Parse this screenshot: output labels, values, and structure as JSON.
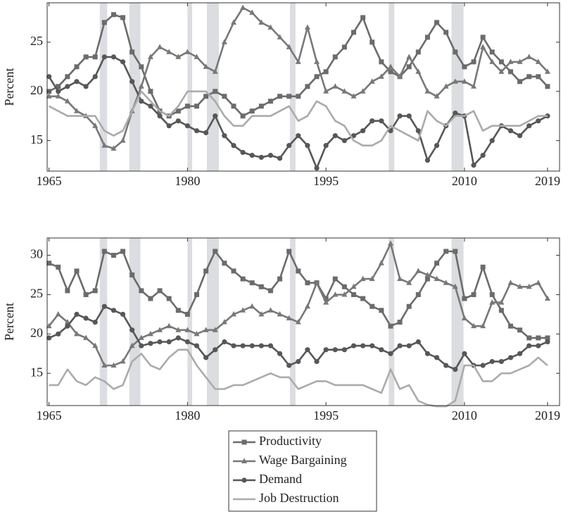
{
  "chart_data": [
    {
      "type": "line",
      "ylabel": "Percent",
      "x": [
        1965,
        1966,
        1967,
        1968,
        1969,
        1970,
        1971,
        1972,
        1973,
        1974,
        1975,
        1976,
        1977,
        1978,
        1979,
        1980,
        1981,
        1982,
        1983,
        1984,
        1985,
        1986,
        1987,
        1988,
        1989,
        1990,
        1991,
        1992,
        1993,
        1994,
        1995,
        1996,
        1997,
        1998,
        1999,
        2000,
        2001,
        2002,
        2003,
        2004,
        2005,
        2006,
        2007,
        2008,
        2009,
        2010,
        2011,
        2012,
        2013,
        2014,
        2015,
        2016,
        2017,
        2018,
        2019
      ],
      "xlim": [
        1964.8,
        2020.3
      ],
      "xticks": [
        1965,
        1980,
        1995,
        2010,
        2019
      ],
      "ylim": [
        11.9,
        29
      ],
      "yticks": [
        15,
        20,
        25
      ],
      "shaded_x": [
        [
          1970.5,
          1971.3
        ],
        [
          1973.7,
          1974.9
        ],
        [
          1980.0,
          1980.5
        ],
        [
          1982.1,
          1983.4
        ],
        [
          1991.1,
          1991.7
        ],
        [
          2001.8,
          2002.4
        ],
        [
          2008.6,
          2009.9
        ]
      ],
      "shade_color": "#dcdde0",
      "series": [
        {
          "name": "Productivity",
          "color": "#6b6b6b",
          "marker": "square",
          "values": [
            20,
            20.5,
            21.5,
            22.5,
            23.5,
            23.5,
            27,
            27.8,
            27.5,
            24,
            22.5,
            20,
            18,
            17.5,
            18,
            18.5,
            18.5,
            19.5,
            20,
            19.5,
            18.5,
            17.5,
            18,
            18.5,
            19,
            19.5,
            19.5,
            19.5,
            20.5,
            21.5,
            22,
            23.5,
            24.5,
            26,
            27.5,
            25,
            23,
            22,
            21.5,
            22.5,
            24,
            25.5,
            27,
            26,
            24,
            22.5,
            23,
            25.5,
            24,
            23,
            22,
            21,
            21.5,
            21.5,
            20.5
          ]
        },
        {
          "name": "Wage Bargaining",
          "color": "#787878",
          "marker": "triangle",
          "values": [
            19.5,
            19.5,
            19,
            18,
            17.5,
            16.5,
            14.5,
            14.2,
            15,
            18,
            20.5,
            23.5,
            24.5,
            24,
            23.5,
            24,
            23.5,
            22.5,
            22,
            25,
            27,
            28.5,
            28,
            27,
            26.5,
            25.5,
            24.5,
            23,
            26.5,
            23,
            20,
            20.5,
            20,
            19.5,
            20,
            21,
            21.5,
            22.5,
            21.5,
            23.5,
            22,
            20,
            19.5,
            20.5,
            21,
            21,
            20.5,
            24.5,
            23,
            22,
            23,
            23,
            23.5,
            23,
            22
          ]
        },
        {
          "name": "Demand",
          "color": "#575757",
          "marker": "circle",
          "values": [
            21.5,
            20,
            20.5,
            21,
            20.5,
            21.5,
            23.5,
            23.5,
            23,
            21,
            19,
            18.5,
            17.5,
            16.5,
            17,
            16.5,
            16,
            15.8,
            17.5,
            15.5,
            14.5,
            13.8,
            13.5,
            13.3,
            13.5,
            13.2,
            14.5,
            15.5,
            14.5,
            12.2,
            14.5,
            15.5,
            15,
            15.5,
            16,
            17,
            17,
            16,
            17.5,
            17.5,
            16,
            13,
            14.5,
            16.5,
            17.8,
            17.5,
            12.5,
            13.5,
            15,
            16.5,
            16,
            15.5,
            16.5,
            17,
            17.5
          ]
        },
        {
          "name": "Job Destruction",
          "color": "#ababab",
          "marker": "none",
          "values": [
            18.5,
            18,
            17.5,
            17.5,
            17.5,
            17.5,
            16,
            15.5,
            16,
            18,
            20,
            19,
            18,
            17.5,
            18.5,
            20,
            20,
            20,
            19,
            17.5,
            16.5,
            16.5,
            17.5,
            17.5,
            17.5,
            18,
            18.5,
            17,
            17.5,
            19,
            18.5,
            17,
            16.5,
            15,
            14.5,
            14.5,
            15,
            16.5,
            16,
            15.5,
            15,
            18,
            17,
            16.5,
            17.5,
            17.5,
            18,
            16,
            16.5,
            16.5,
            16.5,
            16.5,
            17,
            17.5,
            17.5
          ]
        }
      ]
    },
    {
      "type": "line",
      "ylabel": "Percent",
      "x": [
        1965,
        1966,
        1967,
        1968,
        1969,
        1970,
        1971,
        1972,
        1973,
        1974,
        1975,
        1976,
        1977,
        1978,
        1979,
        1980,
        1981,
        1982,
        1983,
        1984,
        1985,
        1986,
        1987,
        1988,
        1989,
        1990,
        1991,
        1992,
        1993,
        1994,
        1995,
        1996,
        1997,
        1998,
        1999,
        2000,
        2001,
        2002,
        2003,
        2004,
        2005,
        2006,
        2007,
        2008,
        2009,
        2010,
        2011,
        2012,
        2013,
        2014,
        2015,
        2016,
        2017,
        2018,
        2019
      ],
      "xlim": [
        1964.8,
        2020.3
      ],
      "xticks": [
        1965,
        1980,
        1995,
        2010,
        2019
      ],
      "ylim": [
        10.9,
        32.2
      ],
      "yticks": [
        15,
        20,
        25,
        30
      ],
      "shaded_x": [
        [
          1970.5,
          1971.3
        ],
        [
          1973.7,
          1974.9
        ],
        [
          1980.0,
          1980.5
        ],
        [
          1982.1,
          1983.4
        ],
        [
          1991.1,
          1991.7
        ],
        [
          2001.8,
          2002.4
        ],
        [
          2008.6,
          2009.9
        ]
      ],
      "shade_color": "#dcdde0",
      "series": [
        {
          "name": "Productivity",
          "color": "#6b6b6b",
          "marker": "square",
          "values": [
            29,
            28.5,
            25.5,
            28,
            25,
            25.5,
            30.5,
            30,
            30.5,
            27.5,
            25.5,
            24.5,
            25.5,
            24.5,
            23,
            22.5,
            25,
            28,
            30.5,
            29,
            28,
            27,
            26.5,
            26,
            25.5,
            27,
            30.5,
            28,
            26.5,
            26.5,
            24.5,
            27,
            26,
            25,
            24.5,
            23.5,
            23,
            21,
            21.5,
            23.5,
            25,
            27,
            29,
            30.5,
            30.5,
            24.5,
            25,
            28.5,
            25,
            23,
            21,
            20.5,
            19.5,
            19.5,
            19.5
          ]
        },
        {
          "name": "Wage Bargaining",
          "color": "#787878",
          "marker": "triangle",
          "values": [
            21,
            22.5,
            21.5,
            20,
            19.5,
            18.5,
            16,
            16,
            16.5,
            18.5,
            19.5,
            20,
            20.5,
            21,
            20.5,
            20.5,
            20,
            20.5,
            20.5,
            21.5,
            22.5,
            23,
            23.5,
            22.5,
            23,
            22.5,
            22,
            21.5,
            23.5,
            26.5,
            24,
            25,
            25,
            26,
            27,
            27,
            29,
            31.5,
            27,
            26.5,
            28,
            27.5,
            27,
            26.5,
            26,
            22,
            21,
            21,
            24,
            24,
            26.5,
            26,
            26,
            26.5,
            24.5
          ]
        },
        {
          "name": "Demand",
          "color": "#575757",
          "marker": "circle",
          "values": [
            19.5,
            20,
            21,
            22.5,
            22,
            21.5,
            23.5,
            23,
            22.5,
            20.5,
            18.5,
            18.8,
            19,
            19,
            19.5,
            19,
            18.5,
            17,
            18,
            19,
            18.5,
            18.5,
            18.5,
            18.5,
            18.5,
            17.5,
            16,
            16.5,
            18,
            16.5,
            18,
            18,
            18,
            18.5,
            18.5,
            18.5,
            18,
            17.5,
            18.5,
            18.5,
            19,
            17.5,
            17,
            16,
            15.5,
            17.5,
            16,
            16,
            16.5,
            16.5,
            17,
            17.5,
            18.5,
            18.5,
            19
          ]
        },
        {
          "name": "Job Destruction",
          "color": "#ababab",
          "marker": "none",
          "values": [
            13.5,
            13.5,
            15.5,
            14,
            13.5,
            14.5,
            14,
            13,
            13.5,
            16.5,
            17.5,
            16,
            15.5,
            17,
            18,
            18,
            16,
            14.5,
            13,
            13,
            13.5,
            13.5,
            14,
            14.5,
            15,
            14.5,
            14.5,
            13,
            13.5,
            14,
            14,
            13.5,
            13.5,
            13.5,
            13.5,
            13,
            12.5,
            15.5,
            13,
            13.5,
            11.5,
            11,
            10.8,
            10.8,
            11.5,
            16,
            16,
            14,
            14,
            15,
            15,
            15.5,
            16,
            17,
            16
          ]
        }
      ]
    }
  ]
}
